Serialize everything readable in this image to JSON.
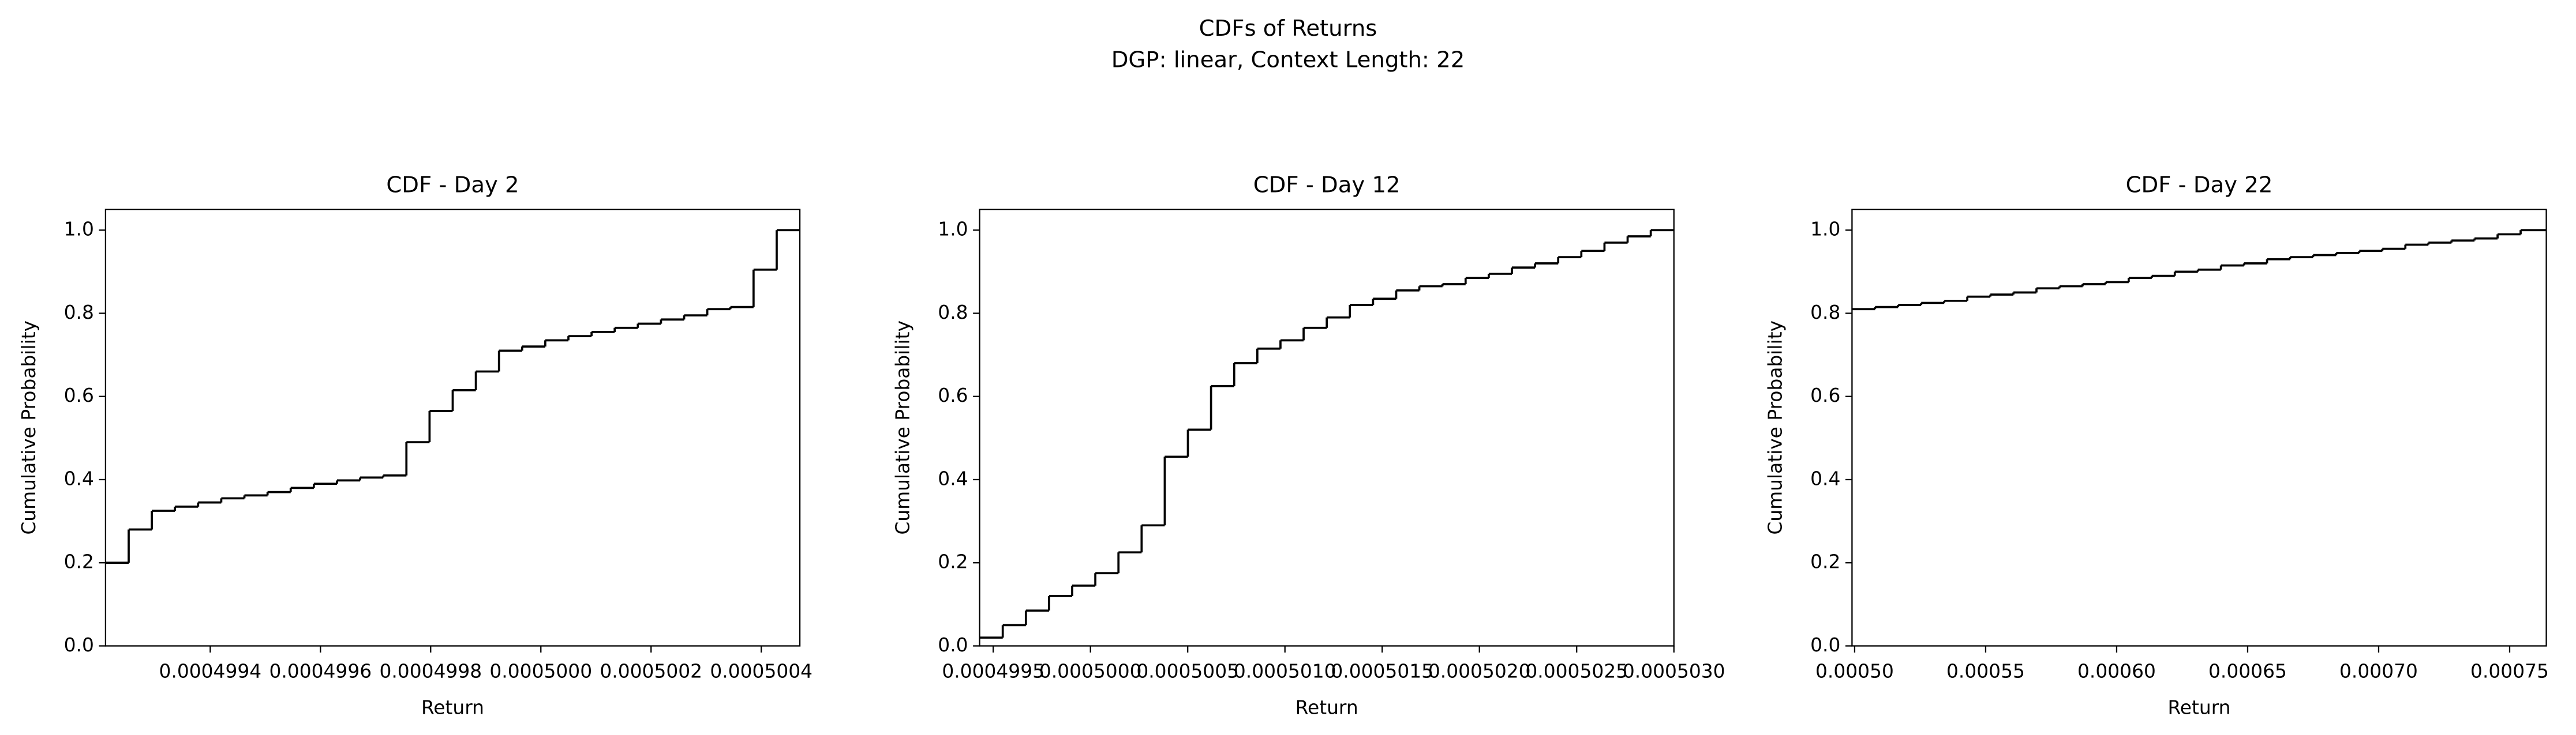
{
  "figure": {
    "title": "CDFs of Returns",
    "subtitle": "DGP: linear, Context Length: 22"
  },
  "chart_data": [
    {
      "type": "step",
      "title": "CDF - Day 2",
      "x_label": "Return",
      "y_label": "Cumulative Probability",
      "color": "#000000",
      "x": [
        0.00049921,
        0.000499252,
        0.000499294,
        0.000499336,
        0.000499378,
        0.00049942,
        0.000499462,
        0.000499504,
        0.000499546,
        0.000499588,
        0.00049963,
        0.000499672,
        0.000499714,
        0.000499756,
        0.000499798,
        0.00049984,
        0.000499882,
        0.000499924,
        0.000499966,
        0.000500008,
        0.00050005,
        0.000500092,
        0.000500134,
        0.000500176,
        0.000500218,
        0.00050026,
        0.000500302,
        0.000500344,
        0.000500386,
        0.000500428,
        0.00050047
      ],
      "values": [
        0.2,
        0.28,
        0.325,
        0.335,
        0.345,
        0.355,
        0.362,
        0.37,
        0.38,
        0.39,
        0.398,
        0.405,
        0.41,
        0.49,
        0.565,
        0.615,
        0.66,
        0.71,
        0.72,
        0.735,
        0.745,
        0.755,
        0.765,
        0.775,
        0.785,
        0.795,
        0.81,
        0.815,
        0.905,
        1.0,
        1.0
      ],
      "xlim": [
        0.00049921,
        0.00050047
      ],
      "xticks": [
        0.0004994,
        0.0004996,
        0.0004998,
        {
          "value": 0.0005,
          "label": "0.0005000"
        },
        0.0005002,
        0.0005004
      ],
      "ylim": [
        0,
        1.05
      ],
      "yticks": [
        {
          "value": 0,
          "label": "0.0"
        },
        0.2,
        0.4,
        0.6,
        0.8,
        {
          "value": 1,
          "label": "1.0"
        }
      ]
    },
    {
      "type": "step",
      "title": "CDF - Day 12",
      "x_label": "Return",
      "y_label": "Cumulative Probability",
      "color": "#000000",
      "x": [
        0.00049943,
        0.000499549,
        0.000499668,
        0.000499787,
        0.000499906,
        0.000500025,
        0.000500144,
        0.000500263,
        0.000500382,
        0.000500501,
        0.00050062,
        0.000500739,
        0.000500858,
        0.000500977,
        0.000501096,
        0.000501215,
        0.000501334,
        0.000501453,
        0.000501572,
        0.000501691,
        0.00050181,
        0.000501929,
        0.000502048,
        0.000502167,
        0.000502286,
        0.000502405,
        0.000502524,
        0.000502643,
        0.000502762,
        0.000502881,
        0.000503
      ],
      "values": [
        0.02,
        0.05,
        0.085,
        0.12,
        0.145,
        0.175,
        0.225,
        0.29,
        0.455,
        0.52,
        0.625,
        0.68,
        0.715,
        0.735,
        0.765,
        0.79,
        0.82,
        0.835,
        0.855,
        0.865,
        0.87,
        0.885,
        0.895,
        0.91,
        0.92,
        0.935,
        0.95,
        0.97,
        0.985,
        1.0,
        1.0
      ],
      "xlim": [
        0.00049943,
        0.000503
      ],
      "xticks": [
        0.0004995,
        {
          "value": 0.0005,
          "label": "0.0005000"
        },
        0.0005005,
        {
          "value": 0.000501,
          "label": "0.0005010"
        },
        0.0005015,
        {
          "value": 0.000502,
          "label": "0.0005020"
        },
        0.0005025,
        {
          "value": 0.000503,
          "label": "0.0005030"
        }
      ],
      "ylim": [
        0,
        1.05
      ],
      "yticks": [
        {
          "value": 0,
          "label": "0.0"
        },
        0.2,
        0.4,
        0.6,
        0.8,
        {
          "value": 1,
          "label": "1.0"
        }
      ]
    },
    {
      "type": "step",
      "title": "CDF - Day 22",
      "x_label": "Return",
      "y_label": "Cumulative Probability",
      "color": "#000000",
      "x": [
        0.000499,
        0.0005078,
        0.0005166,
        0.0005254,
        0.0005342,
        0.000543,
        0.0005518,
        0.0005606,
        0.0005694,
        0.0005782,
        0.000587,
        0.0005958,
        0.0006046,
        0.0006134,
        0.0006222,
        0.000631,
        0.0006398,
        0.0006486,
        0.0006574,
        0.0006662,
        0.000675,
        0.0006838,
        0.0006926,
        0.0007014,
        0.0007102,
        0.000719,
        0.0007278,
        0.0007366,
        0.0007454,
        0.0007542,
        0.000764
      ],
      "values": [
        0.81,
        0.815,
        0.82,
        0.825,
        0.83,
        0.84,
        0.845,
        0.85,
        0.86,
        0.865,
        0.87,
        0.875,
        0.885,
        0.89,
        0.9,
        0.905,
        0.915,
        0.92,
        0.93,
        0.935,
        0.94,
        0.945,
        0.95,
        0.955,
        0.965,
        0.97,
        0.975,
        0.98,
        0.99,
        1.0,
        1.0
      ],
      "xlim": [
        0.000499,
        0.000764
      ],
      "xticks": [
        {
          "value": 0.0005,
          "label": "0.00050"
        },
        0.00055,
        {
          "value": 0.0006,
          "label": "0.00060"
        },
        0.00065,
        {
          "value": 0.0007,
          "label": "0.00070"
        },
        0.00075
      ],
      "ylim": [
        0,
        1.05
      ],
      "yticks": [
        {
          "value": 0,
          "label": "0.0"
        },
        0.2,
        0.4,
        0.6,
        0.8,
        {
          "value": 1,
          "label": "1.0"
        }
      ]
    }
  ]
}
